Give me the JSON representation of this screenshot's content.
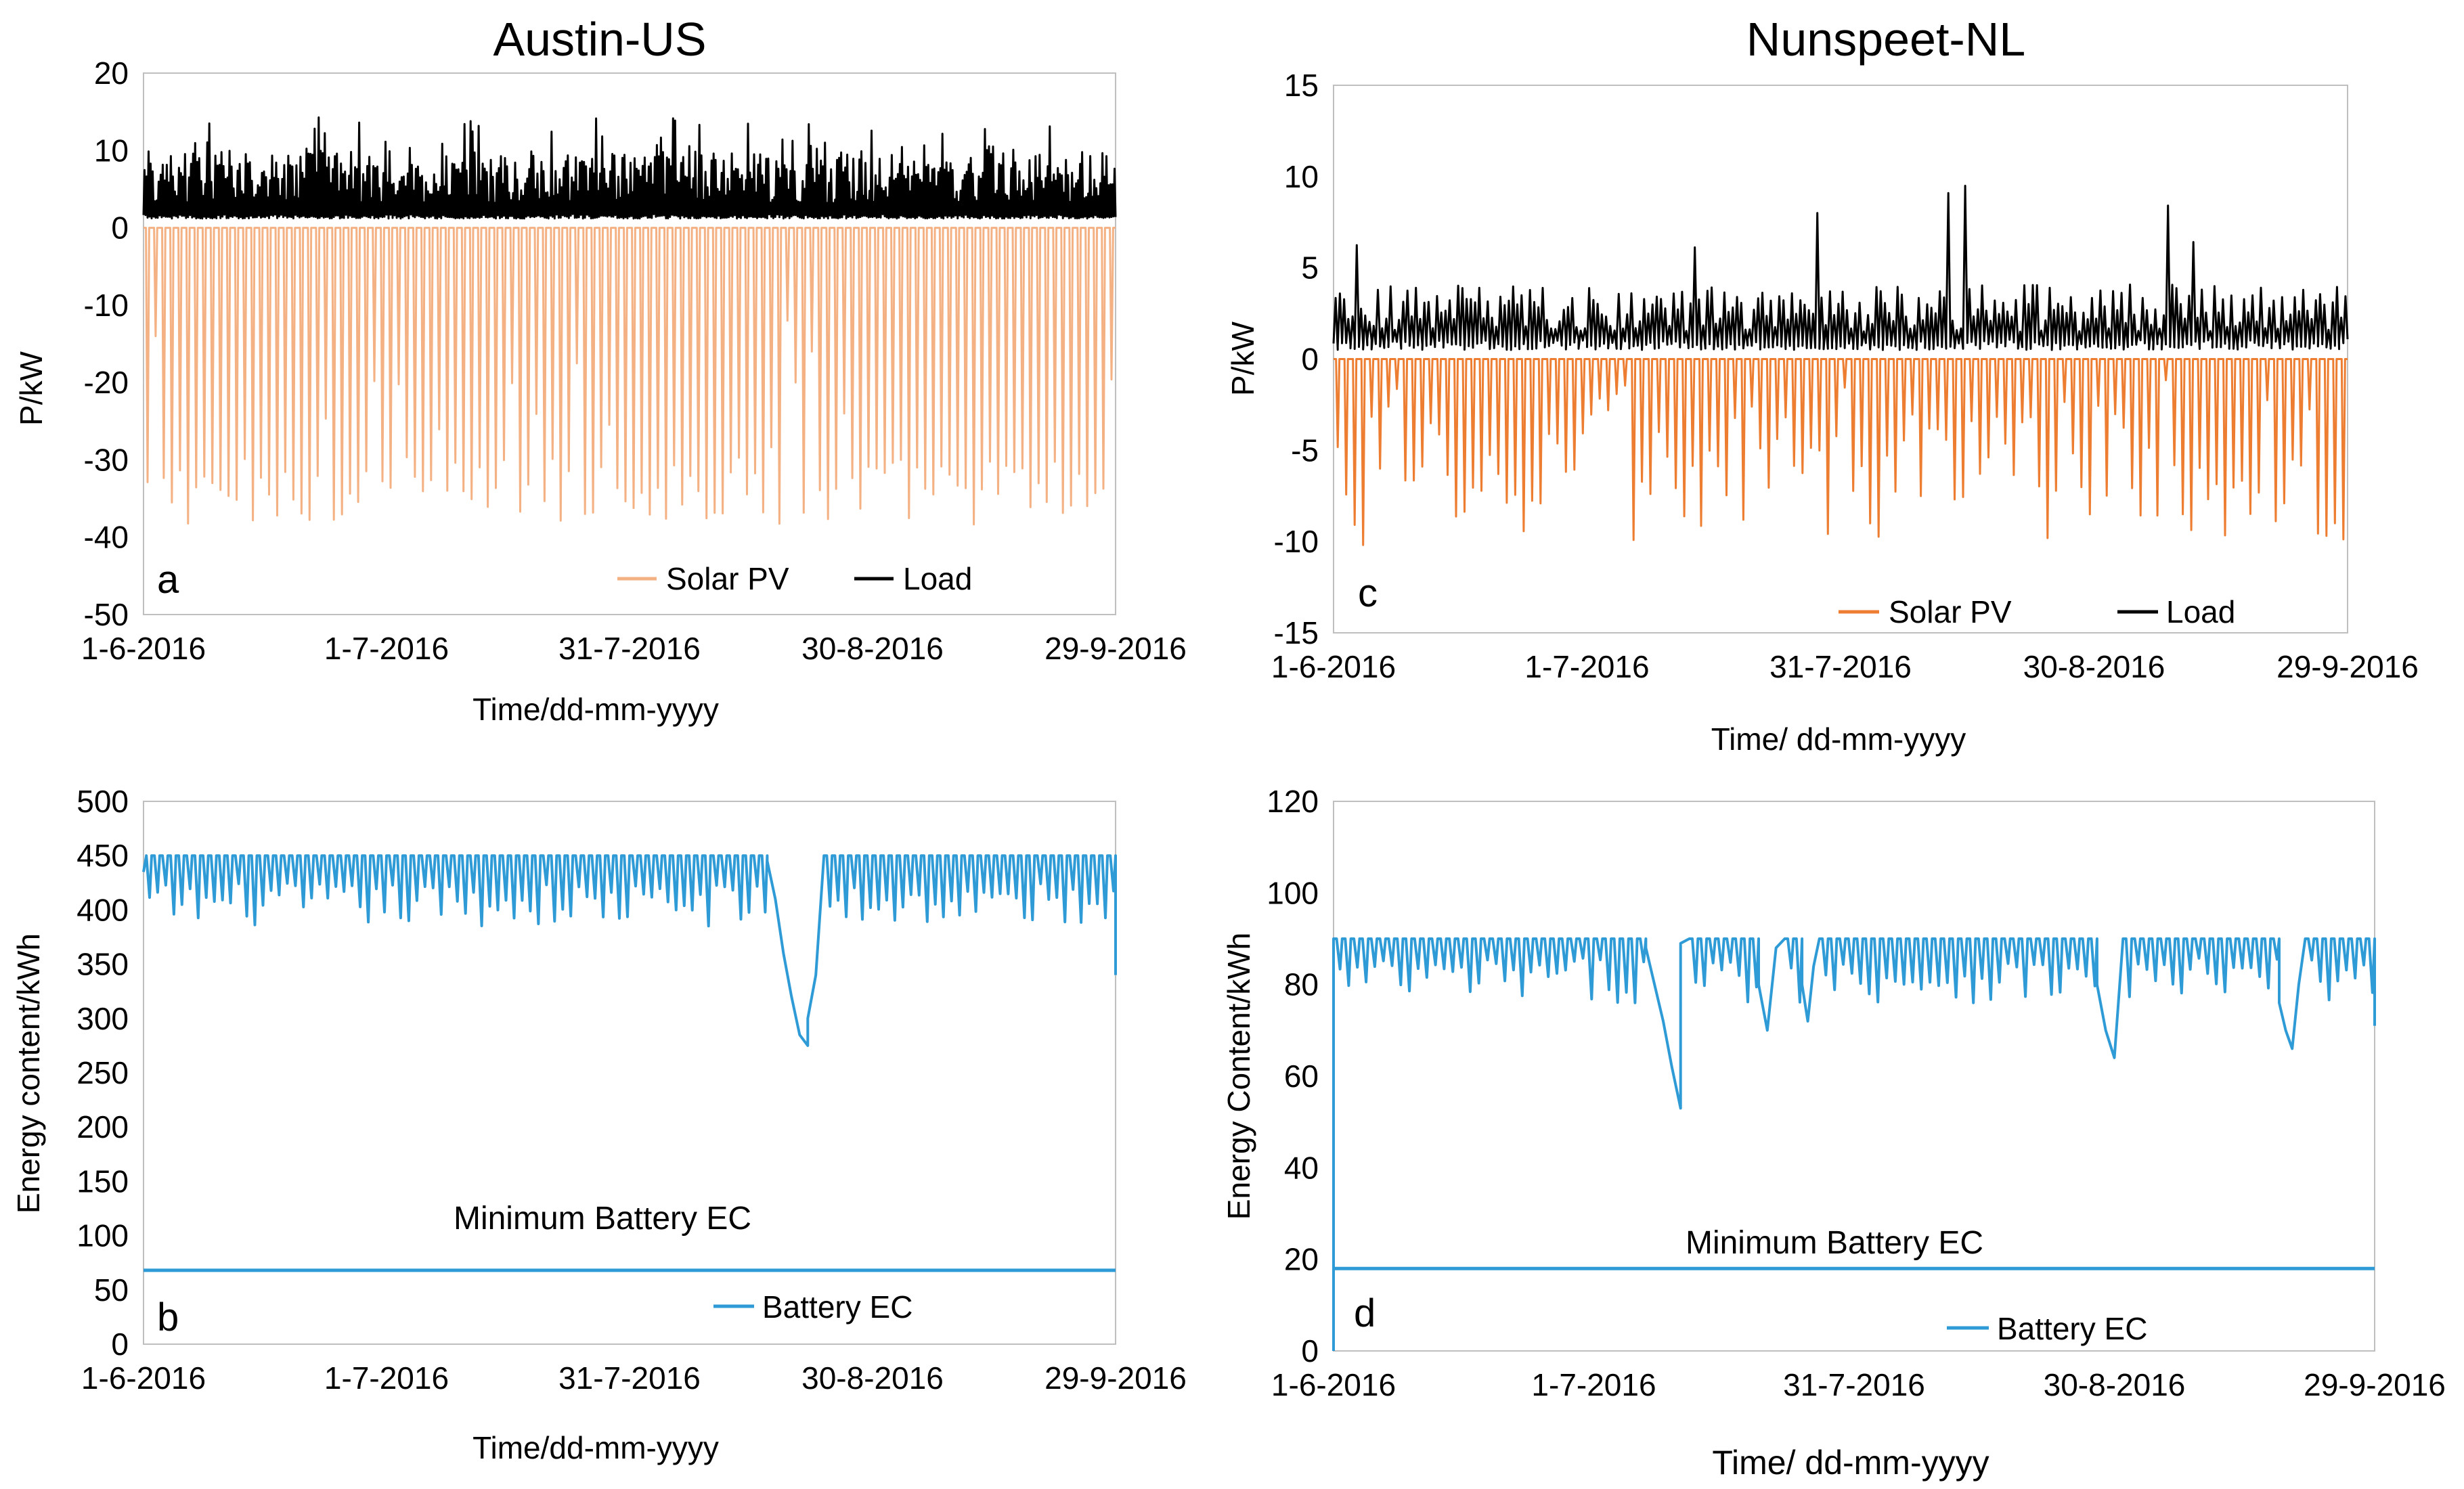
{
  "chart_data": [
    {
      "id": "a",
      "type": "line",
      "title": "Austin-US",
      "panel_label": "a",
      "ylabel": "P/kW",
      "xlabel": "Time/dd-mm-yyyy",
      "ylim": [
        -50,
        20
      ],
      "yticks": [
        20,
        10,
        0,
        -10,
        -20,
        -30,
        -40,
        -50
      ],
      "xlim": [
        0,
        120
      ],
      "xticks": [
        {
          "day": 0,
          "label": "1-6-2016"
        },
        {
          "day": 30,
          "label": "1-7-2016"
        },
        {
          "day": 60,
          "label": "31-7-2016"
        },
        {
          "day": 90,
          "label": "30-8-2016"
        },
        {
          "day": 120,
          "label": "29-9-2016"
        }
      ],
      "series": [
        {
          "name": "Solar PV",
          "color": "#F4B183",
          "kind": "daily_trough",
          "days": 120,
          "base": 0,
          "min": -38.5,
          "max": -29.5,
          "low_days": {
            "1": -14,
            "79": -12,
            "80": -20,
            "82": -16,
            "86": -24
          }
        },
        {
          "name": "Load",
          "color": "#000000",
          "kind": "daily_spike",
          "days": 120,
          "base": 1.2,
          "min": 6,
          "max": 14.5,
          "dense": true
        }
      ],
      "legend": [
        "Solar PV",
        "Load"
      ]
    },
    {
      "id": "b",
      "type": "line",
      "title": "",
      "panel_label": "b",
      "ylabel": "Energy content/kWh",
      "xlabel": "Time/dd-mm-yyyy",
      "ylim": [
        0,
        500
      ],
      "yticks": [
        500,
        450,
        400,
        350,
        300,
        250,
        200,
        150,
        100,
        50,
        0
      ],
      "xlim": [
        0,
        120
      ],
      "xticks": [
        {
          "day": 0,
          "label": "1-6-2016"
        },
        {
          "day": 30,
          "label": "1-7-2016"
        },
        {
          "day": 60,
          "label": "31-7-2016"
        },
        {
          "day": 90,
          "label": "30-8-2016"
        },
        {
          "day": 120,
          "label": "29-9-2016"
        }
      ],
      "series": [
        {
          "name": "Battery EC",
          "color": "#2E9BD6",
          "kind": "battery",
          "days": 120,
          "max": 450,
          "start": 435,
          "end": 340,
          "dip_min": 385,
          "dip_max": 425,
          "dips": [
            {
              "from": 77,
              "to": 82,
              "values": [
                445,
                410,
                360,
                320,
                285,
                275
              ]
            },
            {
              "from": 82,
              "to": 84,
              "values": [
                300,
                340,
                450
              ]
            }
          ]
        },
        {
          "name": "Minimum Battery EC",
          "color": "#2E9BD6",
          "kind": "constant",
          "value": 68,
          "x_from": 0,
          "x_to": 120
        }
      ],
      "annotation": "Minimum Battery EC",
      "legend": [
        "Battery EC"
      ]
    },
    {
      "id": "c",
      "type": "line",
      "title": "Nunspeet-NL",
      "panel_label": "c",
      "ylabel": "P/kW",
      "xlabel": "Time/ dd-mm-yyyy",
      "ylim": [
        -15,
        15
      ],
      "yticks": [
        15,
        10,
        5,
        0,
        -5,
        -10,
        -15
      ],
      "xlim": [
        0,
        120
      ],
      "xticks": [
        {
          "day": 0,
          "label": "1-6-2016"
        },
        {
          "day": 30,
          "label": "1-7-2016"
        },
        {
          "day": 60,
          "label": "31-7-2016"
        },
        {
          "day": 90,
          "label": "30-8-2016"
        },
        {
          "day": 120,
          "label": "29-9-2016"
        }
      ],
      "series": [
        {
          "name": "Solar PV",
          "color": "#ED7D31",
          "kind": "daily_trough",
          "days": 120,
          "base": 0,
          "min": -10.2,
          "max": -2.5
        },
        {
          "name": "Load",
          "color": "#000000",
          "kind": "daily_spike",
          "days": 120,
          "base": 0.5,
          "min": 3.5,
          "max": 9.8,
          "dense": false
        }
      ],
      "legend": [
        "Solar PV",
        "Load"
      ]
    },
    {
      "id": "d",
      "type": "line",
      "title": "",
      "panel_label": "d",
      "ylabel": "Energy Content/kWh",
      "xlabel": "Time/ dd-mm-yyyy",
      "ylim": [
        0,
        120
      ],
      "yticks": [
        120,
        100,
        80,
        60,
        40,
        20,
        0
      ],
      "xlim": [
        0,
        120
      ],
      "xticks": [
        {
          "day": 0,
          "label": "1-6-2016"
        },
        {
          "day": 30,
          "label": "1-7-2016"
        },
        {
          "day": 60,
          "label": "31-7-2016"
        },
        {
          "day": 90,
          "label": "30-8-2016"
        },
        {
          "day": 120,
          "label": "29-9-2016"
        }
      ],
      "series": [
        {
          "name": "Battery EC",
          "color": "#2E9BD6",
          "kind": "battery",
          "days": 120,
          "max": 90,
          "start": 0,
          "end": 71,
          "dip_min": 76,
          "dip_max": 86,
          "dips": [
            {
              "from": 36,
              "to": 40,
              "values": [
                88,
                80,
                72,
                62,
                53
              ]
            },
            {
              "from": 40,
              "to": 41,
              "values": [
                89,
                90
              ]
            },
            {
              "from": 49,
              "to": 52,
              "values": [
                80,
                70,
                88,
                90
              ]
            },
            {
              "from": 54,
              "to": 56,
              "values": [
                80,
                72,
                84,
                90
              ]
            },
            {
              "from": 88,
              "to": 91,
              "values": [
                80,
                70,
                64,
                90
              ]
            },
            {
              "from": 109,
              "to": 112,
              "values": [
                76,
                70,
                66,
                80,
                90
              ]
            }
          ]
        },
        {
          "name": "Minimum Battery EC",
          "color": "#2E9BD6",
          "kind": "constant",
          "value": 18,
          "x_from": 0,
          "x_to": 120
        }
      ],
      "annotation": "Minimum Battery EC",
      "legend": [
        "Battery EC"
      ]
    }
  ]
}
